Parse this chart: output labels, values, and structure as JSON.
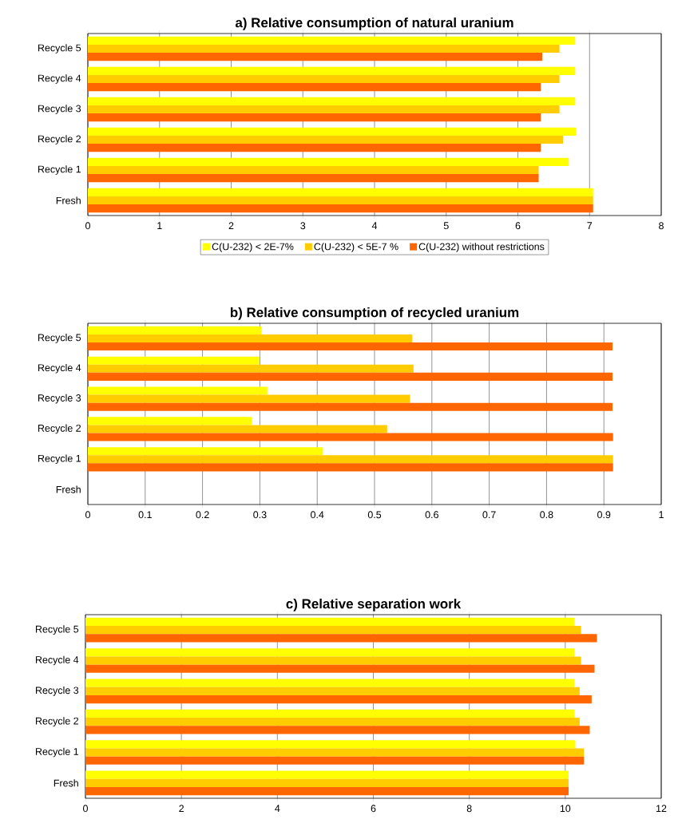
{
  "chart_data": [
    {
      "type": "bar",
      "orientation": "horizontal",
      "title": "a) Relative consumption of natural uranium",
      "categories": [
        "Recycle 5",
        "Recycle 4",
        "Recycle 3",
        "Recycle 2",
        "Recycle 1",
        "Fresh"
      ],
      "xlim": [
        0,
        8
      ],
      "xticks": [
        0,
        1,
        2,
        3,
        4,
        5,
        6,
        7,
        8
      ],
      "grid": "x",
      "legend": "bottom",
      "series": [
        {
          "name": "C(U-232) < 2E-7%",
          "color": "#ffff00",
          "values": [
            6.8,
            6.8,
            6.8,
            6.81,
            6.71,
            7.05
          ]
        },
        {
          "name": "C(U-232) < 5E-7 %",
          "color": "#ffcc00",
          "values": [
            6.58,
            6.58,
            6.58,
            6.63,
            6.29,
            7.05
          ]
        },
        {
          "name": "C(U-232) without restrictions",
          "color": "#ff6600",
          "values": [
            6.34,
            6.32,
            6.32,
            6.32,
            6.29,
            7.05
          ]
        }
      ]
    },
    {
      "type": "bar",
      "orientation": "horizontal",
      "title": "b) Relative consumption of recycled uranium",
      "categories": [
        "Recycle 5",
        "Recycle 4",
        "Recycle 3",
        "Recycle 2",
        "Recycle 1",
        "Fresh"
      ],
      "xlim": [
        0,
        1
      ],
      "xticks": [
        0,
        0.1,
        0.2,
        0.3,
        0.4,
        0.5,
        0.6,
        0.7,
        0.8,
        0.9,
        1
      ],
      "grid": "x",
      "series": [
        {
          "color": "#ffff00",
          "values": [
            0.303,
            0.299,
            0.313,
            0.286,
            0.41,
            null
          ]
        },
        {
          "color": "#ffcc00",
          "values": [
            0.566,
            0.568,
            0.562,
            0.522,
            0.916,
            null
          ]
        },
        {
          "color": "#ff6600",
          "values": [
            0.915,
            0.915,
            0.915,
            0.916,
            0.916,
            null
          ]
        }
      ]
    },
    {
      "type": "bar",
      "orientation": "horizontal",
      "title": "c) Relative separation work",
      "categories": [
        "Recycle 5",
        "Recycle 4",
        "Recycle 3",
        "Recycle 2",
        "Recycle 1",
        "Fresh"
      ],
      "xlim": [
        0,
        12
      ],
      "xticks": [
        0,
        2,
        4,
        6,
        8,
        10,
        12
      ],
      "grid": "x",
      "series": [
        {
          "color": "#ffff00",
          "values": [
            10.19,
            10.19,
            10.19,
            10.19,
            10.21,
            10.07
          ]
        },
        {
          "color": "#ffcc00",
          "values": [
            10.33,
            10.33,
            10.3,
            10.3,
            10.39,
            10.07
          ]
        },
        {
          "color": "#ff6600",
          "values": [
            10.66,
            10.61,
            10.55,
            10.51,
            10.39,
            10.07
          ]
        }
      ]
    }
  ]
}
